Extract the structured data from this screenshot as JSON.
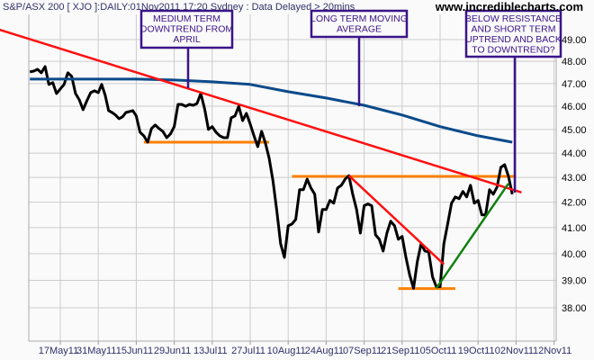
{
  "header": {
    "title": "S&P/ASX 200 [ XJO ]:DAILY:01Nov2011 17:20 Sydney : Data Delayed > 20mins",
    "brand": "www.incrediblecharts.com"
  },
  "colors": {
    "price": "#000000",
    "moving_average": "#0a4a8a",
    "trendline": "#ff1010",
    "support_resistance": "#ff8000",
    "uptrend": "#108010",
    "annotation": "#3a1488",
    "grid": "#cccccc"
  },
  "chart_data": {
    "type": "line",
    "y_scale": "log",
    "ylim": [
      37.6,
      49.4
    ],
    "grid": true,
    "y_axis_side": "right",
    "yticks": [
      "49.00",
      "48.00",
      "47.00",
      "46.00",
      "45.00",
      "44.00",
      "43.00",
      "42.00",
      "41.00",
      "40.00",
      "39.00",
      "38.00"
    ],
    "ytick_values": [
      49,
      48,
      47,
      46,
      45,
      44,
      43,
      42,
      41,
      40,
      39,
      38
    ],
    "xticks": [
      "17May11",
      "31May11",
      "15Jun11",
      "29Jun11",
      "13Jul11",
      "27Jul11",
      "10Aug11",
      "24Aug11",
      "07Sep11",
      "21Sep11",
      "05Oct11",
      "19Oct11",
      "02Nov11",
      "12Nov11"
    ],
    "xtick_dates": [
      "2011-05-17",
      "2011-05-31",
      "2011-06-15",
      "2011-06-29",
      "2011-07-13",
      "2011-07-27",
      "2011-08-10",
      "2011-08-24",
      "2011-09-07",
      "2011-09-21",
      "2011-10-05",
      "2011-10-19",
      "2011-11-02",
      "2011-11-12"
    ],
    "series": [
      {
        "kind": "price",
        "points": [
          [
            "2011-05-05",
            47.52
          ],
          [
            "2011-05-06",
            47.56
          ],
          [
            "2011-05-09",
            47.64
          ],
          [
            "2011-05-10",
            47.48
          ],
          [
            "2011-05-11",
            47.76
          ],
          [
            "2011-05-12",
            46.96
          ],
          [
            "2011-05-13",
            47.04
          ],
          [
            "2011-05-16",
            46.56
          ],
          [
            "2011-05-17",
            46.76
          ],
          [
            "2011-05-18",
            46.96
          ],
          [
            "2011-05-19",
            47.48
          ],
          [
            "2011-05-20",
            47.32
          ],
          [
            "2011-05-23",
            46.56
          ],
          [
            "2011-05-24",
            46.28
          ],
          [
            "2011-05-25",
            45.85
          ],
          [
            "2011-05-26",
            46.24
          ],
          [
            "2011-05-27",
            46.6
          ],
          [
            "2011-05-30",
            46.68
          ],
          [
            "2011-05-31",
            46.6
          ],
          [
            "2011-06-01",
            46.96
          ],
          [
            "2011-06-02",
            46.48
          ],
          [
            "2011-06-03",
            45.81
          ],
          [
            "2011-06-06",
            45.73
          ],
          [
            "2011-06-07",
            45.62
          ],
          [
            "2011-06-08",
            45.46
          ],
          [
            "2011-06-09",
            45.54
          ],
          [
            "2011-06-10",
            45.73
          ],
          [
            "2011-06-14",
            45.81
          ],
          [
            "2011-06-15",
            45.58
          ],
          [
            "2011-06-16",
            44.88
          ],
          [
            "2011-06-17",
            44.73
          ],
          [
            "2011-06-20",
            44.46
          ],
          [
            "2011-06-21",
            45.04
          ],
          [
            "2011-06-22",
            45.19
          ],
          [
            "2011-06-23",
            45.04
          ],
          [
            "2011-06-24",
            44.92
          ],
          [
            "2011-06-27",
            44.65
          ],
          [
            "2011-06-28",
            44.81
          ],
          [
            "2011-06-29",
            45.12
          ],
          [
            "2011-06-30",
            46.08
          ],
          [
            "2011-07-01",
            46.08
          ],
          [
            "2011-07-04",
            46.0
          ],
          [
            "2011-07-05",
            46.08
          ],
          [
            "2011-07-06",
            46.04
          ],
          [
            "2011-07-07",
            46.12
          ],
          [
            "2011-07-08",
            46.56
          ],
          [
            "2011-07-11",
            45.88
          ],
          [
            "2011-07-12",
            45.0
          ],
          [
            "2011-07-13",
            45.12
          ],
          [
            "2011-07-14",
            44.88
          ],
          [
            "2011-07-15",
            44.73
          ],
          [
            "2011-07-18",
            44.65
          ],
          [
            "2011-07-19",
            44.65
          ],
          [
            "2011-07-20",
            45.5
          ],
          [
            "2011-07-21",
            45.58
          ],
          [
            "2011-07-22",
            46.0
          ],
          [
            "2011-07-25",
            45.38
          ],
          [
            "2011-07-26",
            45.69
          ],
          [
            "2011-07-27",
            45.23
          ],
          [
            "2011-07-28",
            44.73
          ],
          [
            "2011-07-29",
            44.27
          ],
          [
            "2011-08-01",
            44.92
          ],
          [
            "2011-08-02",
            44.42
          ],
          [
            "2011-08-03",
            43.78
          ],
          [
            "2011-08-04",
            42.86
          ],
          [
            "2011-08-05",
            41.68
          ],
          [
            "2011-08-08",
            40.38
          ],
          [
            "2011-08-09",
            39.86
          ],
          [
            "2011-08-10",
            41.07
          ],
          [
            "2011-08-11",
            41.14
          ],
          [
            "2011-08-12",
            41.32
          ],
          [
            "2011-08-15",
            42.5
          ],
          [
            "2011-08-16",
            42.5
          ],
          [
            "2011-08-17",
            42.93
          ],
          [
            "2011-08-18",
            42.57
          ],
          [
            "2011-08-19",
            42.32
          ],
          [
            "2011-08-22",
            40.83
          ],
          [
            "2011-08-23",
            41.71
          ],
          [
            "2011-08-24",
            41.71
          ],
          [
            "2011-08-25",
            42.07
          ],
          [
            "2011-08-26",
            41.96
          ],
          [
            "2011-08-29",
            42.57
          ],
          [
            "2011-08-30",
            42.68
          ],
          [
            "2011-08-31",
            42.93
          ],
          [
            "2011-09-01",
            43.07
          ],
          [
            "2011-09-02",
            42.32
          ],
          [
            "2011-09-05",
            41.71
          ],
          [
            "2011-09-06",
            40.79
          ],
          [
            "2011-09-07",
            41.86
          ],
          [
            "2011-09-08",
            41.93
          ],
          [
            "2011-09-09",
            41.86
          ],
          [
            "2011-09-12",
            40.72
          ],
          [
            "2011-09-13",
            40.55
          ],
          [
            "2011-09-14",
            40.1
          ],
          [
            "2011-09-15",
            40.79
          ],
          [
            "2011-09-16",
            41.25
          ],
          [
            "2011-09-19",
            41.07
          ],
          [
            "2011-09-20",
            40.55
          ],
          [
            "2011-09-21",
            40.66
          ],
          [
            "2011-09-22",
            39.87
          ],
          [
            "2011-09-23",
            39.2
          ],
          [
            "2011-09-26",
            38.71
          ],
          [
            "2011-09-27",
            39.7
          ],
          [
            "2011-09-28",
            40.38
          ],
          [
            "2011-09-29",
            40.1
          ],
          [
            "2011-09-30",
            40.07
          ],
          [
            "2011-10-03",
            39.13
          ],
          [
            "2011-10-04",
            38.77
          ],
          [
            "2011-10-05",
            38.77
          ],
          [
            "2011-10-06",
            40.38
          ],
          [
            "2011-10-07",
            41.14
          ],
          [
            "2011-10-10",
            41.96
          ],
          [
            "2011-10-11",
            42.21
          ],
          [
            "2011-10-12",
            42.14
          ],
          [
            "2011-10-13",
            42.43
          ],
          [
            "2011-10-14",
            42.21
          ],
          [
            "2011-10-17",
            42.68
          ],
          [
            "2011-10-18",
            41.96
          ],
          [
            "2011-10-19",
            42.07
          ],
          [
            "2011-10-20",
            41.5
          ],
          [
            "2011-10-21",
            41.5
          ],
          [
            "2011-10-24",
            42.5
          ],
          [
            "2011-10-25",
            42.32
          ],
          [
            "2011-10-26",
            42.61
          ],
          [
            "2011-10-27",
            43.41
          ],
          [
            "2011-10-28",
            43.52
          ],
          [
            "2011-10-31",
            43.04
          ],
          [
            "2011-11-01",
            42.32
          ]
        ]
      },
      {
        "kind": "moving_average",
        "points": [
          [
            "2011-05-05",
            47.2
          ],
          [
            "2011-06-15",
            47.2
          ],
          [
            "2011-06-29",
            47.16
          ],
          [
            "2011-07-13",
            47.08
          ],
          [
            "2011-07-27",
            46.96
          ],
          [
            "2011-08-10",
            46.64
          ],
          [
            "2011-08-24",
            46.36
          ],
          [
            "2011-09-07",
            46.04
          ],
          [
            "2011-09-21",
            45.62
          ],
          [
            "2011-10-05",
            45.12
          ],
          [
            "2011-10-19",
            44.73
          ],
          [
            "2011-11-01",
            44.46
          ]
        ]
      }
    ],
    "lines": [
      {
        "kind": "trendline",
        "from": [
          "2011-04-25",
          49.46
        ],
        "to": [
          "2011-11-03",
          42.39
        ]
      },
      {
        "kind": "trendline",
        "from": [
          "2011-09-01",
          43.07
        ],
        "to": [
          "2011-10-06",
          39.6
        ]
      },
      {
        "kind": "uptrend",
        "from": [
          "2011-10-04",
          38.71
        ],
        "to": [
          "2011-10-31",
          42.75
        ]
      },
      {
        "kind": "support_resistance",
        "from": [
          "2011-06-17",
          44.46
        ],
        "to": [
          "2011-08-03",
          44.46
        ]
      },
      {
        "kind": "support_resistance",
        "from": [
          "2011-08-11",
          43.04
        ],
        "to": [
          "2011-11-02",
          43.04
        ]
      },
      {
        "kind": "support_resistance",
        "from": [
          "2011-09-20",
          38.7
        ],
        "to": [
          "2011-10-11",
          38.7
        ]
      }
    ],
    "annotations": [
      {
        "lines": [
          "MEDIUM TERM",
          "DOWNTREND FROM",
          "APRIL"
        ]
      },
      {
        "lines": [
          "LONG TERM MOVING",
          "AVERAGE"
        ]
      },
      {
        "lines": [
          "BELOW RESISTANCE",
          "AND SHORT TERM",
          "UPTREND AND BACK",
          "TO DOWNTREND?"
        ]
      }
    ]
  }
}
